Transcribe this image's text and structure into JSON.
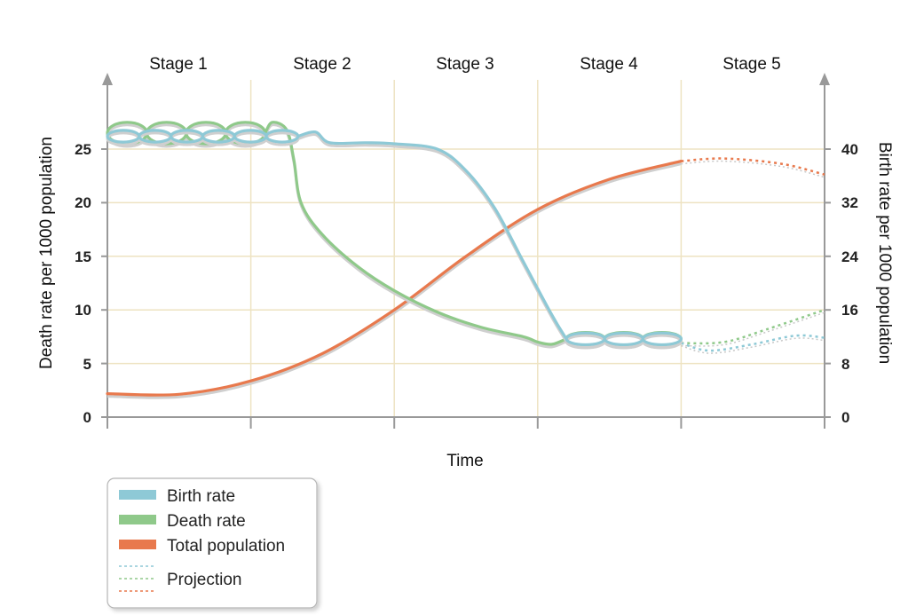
{
  "chart_data": {
    "type": "line",
    "stages": [
      "Stage 1",
      "Stage 2",
      "Stage 3",
      "Stage 4",
      "Stage 5"
    ],
    "xlabel": "Time",
    "ylabel_left": "Death rate per 1000 population",
    "ylabel_right": "Birth rate per 1000 population",
    "x_range": [
      0,
      5
    ],
    "left_axis": {
      "range": [
        0,
        30
      ],
      "ticks": [
        0,
        5,
        10,
        15,
        20,
        25
      ]
    },
    "right_axis": {
      "range": [
        0,
        48
      ],
      "ticks": [
        0,
        8,
        16,
        24,
        32,
        40
      ]
    },
    "grid": true,
    "legend_position": "bottom-left",
    "legend": {
      "birth": "Birth rate",
      "death": "Death rate",
      "population": "Total population",
      "projection": "Projection"
    },
    "colors": {
      "birth": "#8ec9d6",
      "death": "#8fc98a",
      "population": "#e8794d",
      "grid": "#eee3c2",
      "axis": "#999999"
    },
    "series": [
      {
        "key": "birth",
        "name": "Birth rate",
        "axis": "left",
        "wavy_segments": [
          {
            "x0": 0.0,
            "x1": 1.33,
            "center": 26.2,
            "amp": 0.55,
            "cycles": 6
          },
          {
            "x0": 3.2,
            "x1": 4.0,
            "center": 7.3,
            "amp": 0.55,
            "cycles": 3
          }
        ],
        "points": [
          [
            1.33,
            26.2
          ],
          [
            1.45,
            26.6
          ],
          [
            1.55,
            25.6
          ],
          [
            1.8,
            25.6
          ],
          [
            2.0,
            25.5
          ],
          [
            2.3,
            25.0
          ],
          [
            2.5,
            23.0
          ],
          [
            2.7,
            19.5
          ],
          [
            2.9,
            14.5
          ],
          [
            3.1,
            9.5
          ],
          [
            3.2,
            7.3
          ]
        ],
        "projection": [
          [
            4.0,
            6.9
          ],
          [
            4.2,
            6.2
          ],
          [
            4.5,
            6.8
          ],
          [
            4.8,
            7.6
          ],
          [
            5.0,
            7.4
          ]
        ]
      },
      {
        "key": "death",
        "name": "Death rate",
        "axis": "left",
        "wavy_segments": [
          {
            "x0": 0.0,
            "x1": 1.1,
            "center": 26.5,
            "amp": 1.0,
            "cycles": 4
          },
          {
            "x0": 3.2,
            "x1": 4.0,
            "center": 7.3,
            "amp": 0.6,
            "cycles": 3
          }
        ],
        "points": [
          [
            1.1,
            26.5
          ],
          [
            1.15,
            27.5
          ],
          [
            1.25,
            26.8
          ],
          [
            1.3,
            24.0
          ],
          [
            1.35,
            20.0
          ],
          [
            1.5,
            17.0
          ],
          [
            1.75,
            14.0
          ],
          [
            2.0,
            11.8
          ],
          [
            2.3,
            9.8
          ],
          [
            2.6,
            8.4
          ],
          [
            2.9,
            7.5
          ],
          [
            3.0,
            7.0
          ],
          [
            3.1,
            6.8
          ],
          [
            3.2,
            7.3
          ]
        ],
        "projection": [
          [
            4.0,
            6.9
          ],
          [
            4.3,
            7.0
          ],
          [
            4.6,
            8.2
          ],
          [
            5.0,
            10.0
          ]
        ]
      },
      {
        "key": "population",
        "name": "Total population",
        "axis": "right",
        "points": [
          [
            0.0,
            3.5
          ],
          [
            0.5,
            3.4
          ],
          [
            1.0,
            5.4
          ],
          [
            1.5,
            9.5
          ],
          [
            2.0,
            16.0
          ],
          [
            2.5,
            24.0
          ],
          [
            3.0,
            31.0
          ],
          [
            3.5,
            35.5
          ],
          [
            4.0,
            38.2
          ]
        ],
        "projection": [
          [
            4.0,
            38.2
          ],
          [
            4.3,
            38.6
          ],
          [
            4.7,
            37.8
          ],
          [
            5.0,
            36.2
          ]
        ]
      }
    ]
  }
}
